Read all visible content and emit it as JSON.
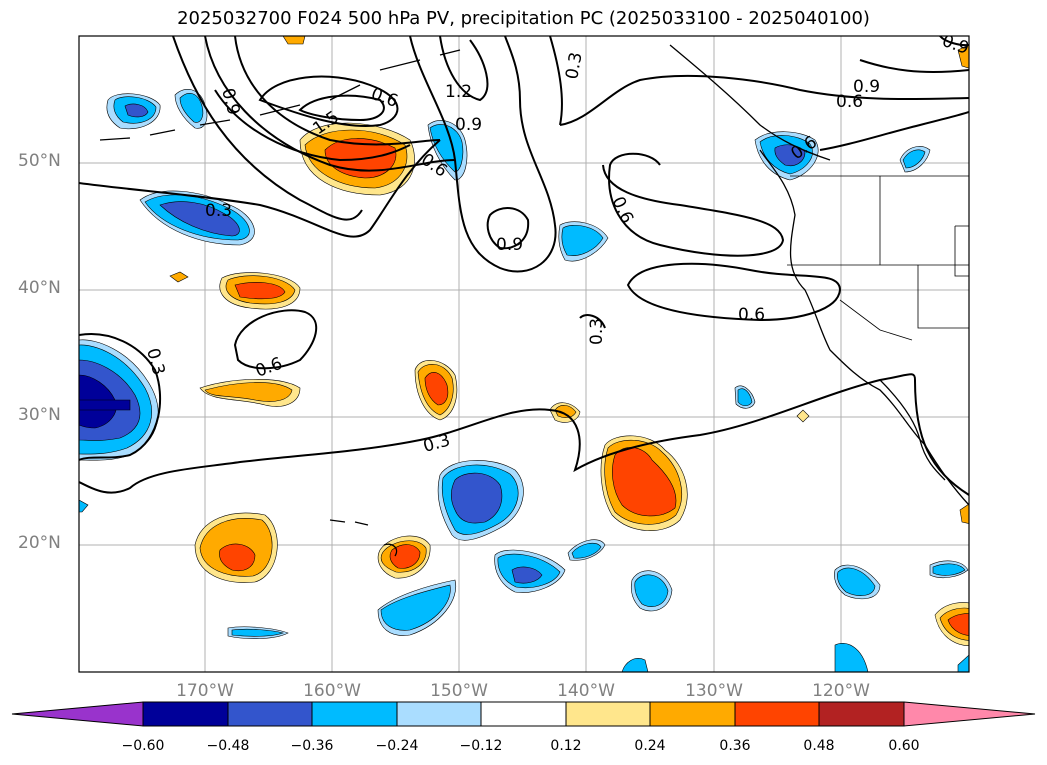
{
  "title": "2025032700 F024 500 hPa PV, precipitation PC (2025033100 - 2025040100)",
  "lat_labels": [
    "50°N",
    "40°N",
    "30°N",
    "20°N"
  ],
  "lon_labels": [
    "170°W",
    "160°W",
    "150°W",
    "140°W",
    "130°W",
    "120°W"
  ],
  "contour_labels": [
    "0.9",
    "0.6",
    "1.2",
    "0.9",
    "1.5",
    "0.6",
    "0.3",
    "0.9",
    "0.9",
    "0.6",
    "0.6",
    "0.6",
    "0.6",
    "0.3",
    "0.3",
    "0.3",
    "0.3",
    "0.9",
    "0.6",
    "0.3"
  ],
  "colorbar": {
    "ticks": [
      "−0.60",
      "−0.48",
      "−0.36",
      "−0.24",
      "−0.12",
      "0.12",
      "0.24",
      "0.36",
      "0.48",
      "0.60"
    ],
    "colors": [
      "#9933cc",
      "#000099",
      "#3355cc",
      "#00bbff",
      "#aaddff",
      "#ffffff",
      "#ffe68c",
      "#ffaa00",
      "#ff4400",
      "#b22222",
      "#ff88aa"
    ]
  },
  "colors": {
    "pos_light": "#ffe68c",
    "pos_mid": "#ffaa00",
    "pos_strong": "#ff4400",
    "neg_light": "#aaddff",
    "neg_mid": "#00bbff",
    "neg_strong": "#3355cc",
    "neg_extreme": "#000099"
  }
}
